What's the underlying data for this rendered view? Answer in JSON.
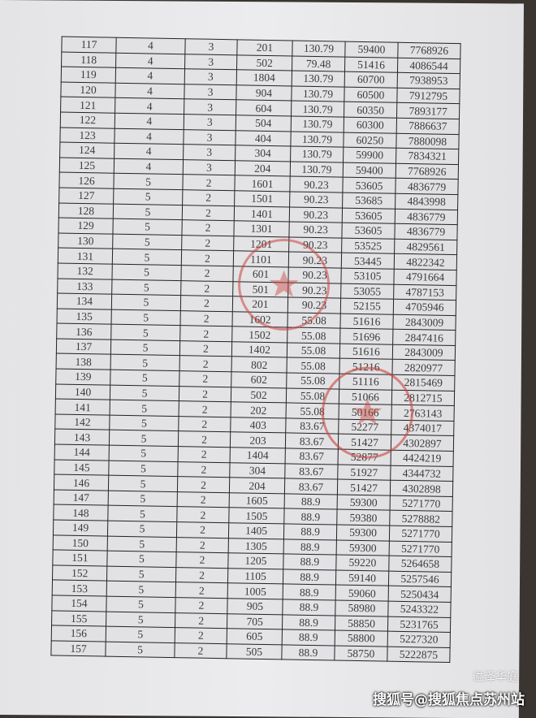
{
  "table": {
    "rows": [
      [
        "117",
        "4",
        "3",
        "201",
        "130.79",
        "59400",
        "7768926"
      ],
      [
        "118",
        "4",
        "3",
        "502",
        "79.48",
        "51416",
        "4086544"
      ],
      [
        "119",
        "4",
        "3",
        "1804",
        "130.79",
        "60700",
        "7938953"
      ],
      [
        "120",
        "4",
        "3",
        "904",
        "130.79",
        "60500",
        "7912795"
      ],
      [
        "121",
        "4",
        "3",
        "604",
        "130.79",
        "60350",
        "7893177"
      ],
      [
        "122",
        "4",
        "3",
        "504",
        "130.79",
        "60300",
        "7886637"
      ],
      [
        "123",
        "4",
        "3",
        "404",
        "130.79",
        "60250",
        "7880098"
      ],
      [
        "124",
        "4",
        "3",
        "304",
        "130.79",
        "59900",
        "7834321"
      ],
      [
        "125",
        "4",
        "3",
        "204",
        "130.79",
        "59400",
        "7768926"
      ],
      [
        "126",
        "5",
        "2",
        "1601",
        "90.23",
        "53605",
        "4836779"
      ],
      [
        "127",
        "5",
        "2",
        "1501",
        "90.23",
        "53685",
        "4843998"
      ],
      [
        "128",
        "5",
        "2",
        "1401",
        "90.23",
        "53605",
        "4836779"
      ],
      [
        "129",
        "5",
        "2",
        "1301",
        "90.23",
        "53605",
        "4836779"
      ],
      [
        "130",
        "5",
        "2",
        "1201",
        "90.23",
        "53525",
        "4829561"
      ],
      [
        "131",
        "5",
        "2",
        "1101",
        "90.23",
        "53445",
        "4822342"
      ],
      [
        "132",
        "5",
        "2",
        "601",
        "90.23",
        "53105",
        "4791664"
      ],
      [
        "133",
        "5",
        "2",
        "501",
        "90.23",
        "53055",
        "4787153"
      ],
      [
        "134",
        "5",
        "2",
        "201",
        "90.23",
        "52155",
        "4705946"
      ],
      [
        "135",
        "5",
        "2",
        "1602",
        "55.08",
        "51616",
        "2843009"
      ],
      [
        "136",
        "5",
        "2",
        "1502",
        "55.08",
        "51696",
        "2847416"
      ],
      [
        "137",
        "5",
        "2",
        "1402",
        "55.08",
        "51616",
        "2843009"
      ],
      [
        "138",
        "5",
        "2",
        "802",
        "55.08",
        "51216",
        "2820977"
      ],
      [
        "139",
        "5",
        "2",
        "602",
        "55.08",
        "51116",
        "2815469"
      ],
      [
        "140",
        "5",
        "2",
        "502",
        "55.08",
        "51066",
        "2812715"
      ],
      [
        "141",
        "5",
        "2",
        "202",
        "55.08",
        "50166",
        "2763143"
      ],
      [
        "142",
        "5",
        "2",
        "403",
        "83.67",
        "52277",
        "4374017"
      ],
      [
        "143",
        "5",
        "2",
        "203",
        "83.67",
        "51427",
        "4302897"
      ],
      [
        "144",
        "5",
        "2",
        "1404",
        "83.67",
        "52877",
        "4424219"
      ],
      [
        "145",
        "5",
        "2",
        "304",
        "83.67",
        "51927",
        "4344732"
      ],
      [
        "146",
        "5",
        "2",
        "204",
        "83.67",
        "51427",
        "4302898"
      ],
      [
        "147",
        "5",
        "2",
        "1605",
        "88.9",
        "59300",
        "5271770"
      ],
      [
        "148",
        "5",
        "2",
        "1505",
        "88.9",
        "59380",
        "5278882"
      ],
      [
        "149",
        "5",
        "2",
        "1405",
        "88.9",
        "59300",
        "5271770"
      ],
      [
        "150",
        "5",
        "2",
        "1305",
        "88.9",
        "59300",
        "5271770"
      ],
      [
        "151",
        "5",
        "2",
        "1205",
        "88.9",
        "59220",
        "5264658"
      ],
      [
        "152",
        "5",
        "2",
        "1105",
        "88.9",
        "59140",
        "5257546"
      ],
      [
        "153",
        "5",
        "2",
        "1005",
        "88.9",
        "59060",
        "5250434"
      ],
      [
        "154",
        "5",
        "2",
        "905",
        "88.9",
        "58980",
        "5243322"
      ],
      [
        "155",
        "5",
        "2",
        "705",
        "88.9",
        "58850",
        "5231765"
      ],
      [
        "156",
        "5",
        "2",
        "605",
        "88.9",
        "58800",
        "5227320"
      ],
      [
        "157",
        "5",
        "2",
        "505",
        "88.9",
        "58750",
        "5222875"
      ]
    ]
  },
  "stamp_color": "#c8443c",
  "watermark": {
    "account": "溢泽华庭",
    "text": "搜狐号@搜狐焦点苏州站"
  }
}
